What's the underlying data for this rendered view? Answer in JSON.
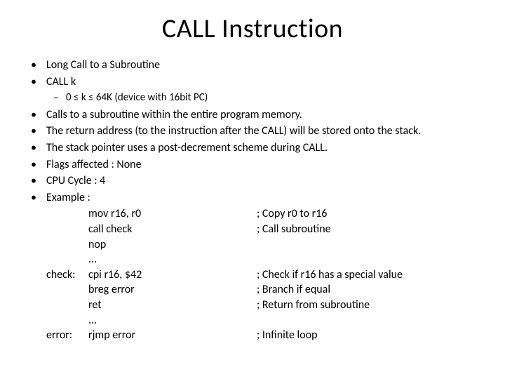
{
  "title": "CALL Instruction",
  "bullets": {
    "b1": "Long Call to a Subroutine",
    "b2": "CALL k",
    "sub1": "0 ≤ k ≤ 64K (device with 16bit PC)",
    "b3": "Calls to a subroutine within the entire program memory.",
    "b4": "The return address (to the instruction after the CALL) will be stored onto the stack.",
    "b5": "The stack pointer uses a post-decrement scheme during CALL.",
    "b6": "Flags affected : None",
    "b7": "CPU Cycle : 4",
    "b8": "Example :"
  },
  "code": {
    "r1": {
      "label": "",
      "instr": "mov r16, r0",
      "comment": "; Copy r0 to r16"
    },
    "r2": {
      "label": "",
      "instr": "call check",
      "comment": "; Call subroutine"
    },
    "r3": {
      "label": "",
      "instr": "nop",
      "comment": ""
    },
    "r4": {
      "label": "",
      "instr": "...",
      "comment": ""
    },
    "r5": {
      "label": "check:",
      "instr": "cpi r16, $42",
      "comment": "; Check if r16 has a special value"
    },
    "r6": {
      "label": "",
      "instr": "breg error",
      "comment": "; Branch if equal"
    },
    "r7": {
      "label": "",
      "instr": "ret",
      "comment": "; Return from subroutine"
    },
    "r8": {
      "label": "",
      "instr": "...",
      "comment": ""
    },
    "r9": {
      "label": "error:",
      "instr": "rjmp error",
      "comment": "; Infinite loop"
    }
  },
  "glyph": {
    "bullet": "•",
    "dash": "–"
  }
}
